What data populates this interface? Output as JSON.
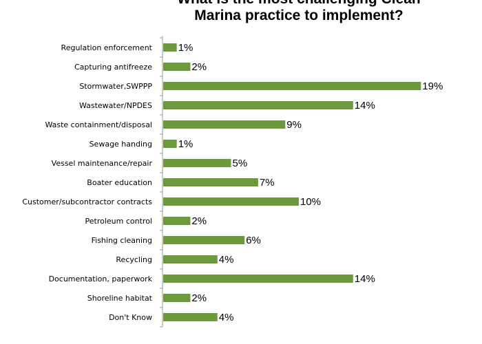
{
  "chart_data": {
    "type": "bar",
    "orientation": "horizontal",
    "title_lines": [
      "What is the most challenging Clean",
      "Marina practice to implement?"
    ],
    "categories": [
      "Regulation enforcement",
      "Capturing antifreeze",
      "Stormwater,SWPPP",
      "Wastewater/NPDES",
      "Waste containment/disposal",
      "Sewage handing",
      "Vessel maintenance/repair",
      "Boater education",
      "Customer/subcontractor contracts",
      "Petroleum control",
      "Fishing cleaning",
      "Recycling",
      "Documentation, paperwork",
      "Shoreline habitat",
      "Don't Know"
    ],
    "values": [
      1,
      2,
      19,
      14,
      9,
      1,
      5,
      7,
      10,
      2,
      6,
      4,
      14,
      2,
      4
    ],
    "value_labels": [
      "1%",
      "2%",
      "19%",
      "14%",
      "9%",
      "1%",
      "5%",
      "7%",
      "10%",
      "2%",
      "6%",
      "4%",
      "14%",
      "2%",
      "4%"
    ],
    "unit": "%",
    "xlim": [
      0,
      19
    ],
    "grid": false,
    "legend": "none",
    "bar_color": "#6a9a3a",
    "axis_color": "#9a9a9a"
  }
}
